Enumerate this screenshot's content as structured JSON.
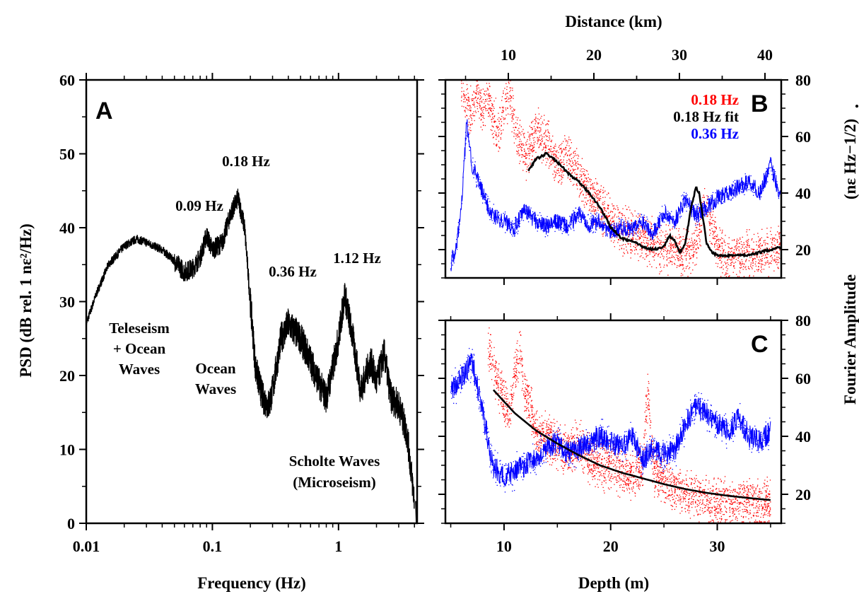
{
  "chart_data": [
    {
      "panel": "A",
      "type": "line",
      "xlabel": "Frequency (Hz)",
      "ylabel": "PSD (dB rel. 1 nε²/Hz)",
      "xscale": "log",
      "xlim": [
        0.01,
        4.2
      ],
      "ylim": [
        0,
        60
      ],
      "xticks": [
        0.01,
        0.1,
        1
      ],
      "xtick_labels": [
        "0.01",
        "0.1",
        "1"
      ],
      "yticks": [
        0,
        10,
        20,
        30,
        40,
        50,
        60
      ],
      "ytick_labels": [
        "0",
        "10",
        "20",
        "30",
        "40",
        "50",
        "60"
      ],
      "x": [
        0.01,
        0.012,
        0.015,
        0.02,
        0.025,
        0.03,
        0.04,
        0.05,
        0.06,
        0.07,
        0.08,
        0.09,
        0.1,
        0.12,
        0.14,
        0.16,
        0.18,
        0.2,
        0.22,
        0.25,
        0.28,
        0.3,
        0.35,
        0.4,
        0.5,
        0.6,
        0.7,
        0.8,
        0.9,
        1.0,
        1.12,
        1.3,
        1.5,
        1.8,
        2.0,
        2.3,
        2.6,
        3.0,
        3.5,
        4.0
      ],
      "y": [
        27,
        31,
        35,
        37.5,
        38.5,
        38,
        37,
        35.5,
        34,
        34.5,
        36,
        39,
        37,
        38,
        42,
        44,
        40,
        30,
        21,
        17,
        16,
        18,
        25,
        27,
        25,
        22,
        19,
        17,
        21,
        25,
        31,
        25,
        18,
        22,
        19,
        23,
        17,
        16,
        12,
        3
      ],
      "peak_labels": [
        "0.18 Hz",
        "0.09 Hz",
        "0.36 Hz",
        "1.12 Hz"
      ],
      "annotations": [
        "Teleseism",
        "+ Ocean",
        "Waves",
        "Ocean",
        "Waves",
        "Scholte Waves",
        "(Microseism)"
      ],
      "color": "#000000",
      "panel_label": "A"
    },
    {
      "panel": "B",
      "type": "scatter",
      "xlabel_top": "Distance (km)",
      "xlim": [
        4.5,
        36
      ],
      "ylim": [
        10,
        80
      ],
      "top_xticks": [
        10,
        20,
        30,
        40
      ],
      "top_xtick_labels": [
        "10",
        "20",
        "30",
        "40"
      ],
      "yticks": [
        20,
        40,
        60,
        80
      ],
      "ytick_labels": [
        "20",
        "40",
        "60",
        "80"
      ],
      "series": [
        {
          "name": "0.18 Hz",
          "kind": "points",
          "color": "#ff0000",
          "x": [
            6,
            6.5,
            7,
            7.5,
            8,
            8.5,
            9,
            9.5,
            10,
            10.5,
            11,
            11.5,
            12,
            13,
            14,
            15,
            16,
            17,
            18,
            19,
            20,
            21,
            22,
            23,
            24,
            25,
            26,
            27,
            28,
            29,
            30,
            31,
            32,
            33,
            34,
            35,
            36
          ],
          "y": [
            78,
            72,
            68,
            75,
            70,
            74,
            66,
            62,
            70,
            76,
            64,
            58,
            52,
            62,
            58,
            50,
            54,
            46,
            40,
            36,
            30,
            27,
            26,
            24,
            22,
            20,
            20,
            19,
            22,
            38,
            20,
            17,
            18,
            18,
            18,
            20,
            22
          ]
        },
        {
          "name": "0.18 Hz fit",
          "kind": "line",
          "color": "#000000",
          "x": [
            12.3,
            13,
            14,
            15,
            16,
            17,
            18,
            19,
            20,
            21,
            22,
            23,
            24,
            25,
            25.5,
            26,
            26.5,
            27,
            27.5,
            28,
            28.3,
            28.7,
            29,
            29.5,
            30,
            31,
            32,
            33,
            34,
            35,
            36
          ],
          "y": [
            48,
            52,
            54,
            51,
            47,
            44,
            40,
            35,
            28,
            24,
            23,
            21,
            20,
            21,
            25,
            23,
            19,
            22,
            34,
            42,
            40,
            30,
            22,
            19,
            18,
            18,
            18,
            18,
            19,
            20,
            21
          ]
        },
        {
          "name": "0.36 Hz",
          "kind": "points",
          "color": "#0000ff",
          "x": [
            5,
            5.5,
            6,
            6.5,
            7,
            7.5,
            8,
            8.5,
            9,
            10,
            11,
            12,
            13,
            14,
            15,
            16,
            17,
            18,
            19,
            20,
            21,
            22,
            23,
            24,
            25,
            26,
            27,
            28,
            29,
            30,
            31,
            32,
            33,
            34,
            35,
            36
          ],
          "y": [
            15,
            20,
            35,
            65,
            50,
            45,
            40,
            35,
            32,
            30,
            28,
            34,
            30,
            28,
            30,
            28,
            33,
            29,
            30,
            26,
            28,
            27,
            30,
            26,
            33,
            30,
            38,
            32,
            35,
            38,
            40,
            42,
            44,
            40,
            50,
            38
          ]
        }
      ],
      "legend_position": "top-right",
      "panel_label": "B"
    },
    {
      "panel": "C",
      "type": "scatter",
      "xlabel": "Depth (m)",
      "xlim": [
        4.5,
        36
      ],
      "ylim": [
        10,
        80
      ],
      "xticks": [
        10,
        20,
        30
      ],
      "xtick_labels": [
        "10",
        "20",
        "30"
      ],
      "yticks": [
        20,
        40,
        60,
        80
      ],
      "ytick_labels": [
        "20",
        "40",
        "60",
        "80"
      ],
      "series": [
        {
          "name": "0.18 Hz",
          "kind": "points",
          "color": "#ff0000",
          "x": [
            8.5,
            9,
            9.5,
            10,
            10.5,
            11,
            11.5,
            12,
            12.5,
            13,
            14,
            15,
            16,
            17,
            18,
            19,
            20,
            21,
            22,
            23,
            23.5,
            24,
            25,
            26,
            27,
            28,
            29,
            30,
            31,
            32,
            33,
            34,
            35
          ],
          "y": [
            72,
            65,
            58,
            52,
            48,
            60,
            70,
            55,
            50,
            42,
            40,
            36,
            34,
            38,
            32,
            30,
            30,
            28,
            27,
            30,
            55,
            28,
            25,
            22,
            20,
            20,
            18,
            18,
            17,
            17,
            17,
            16,
            17
          ]
        },
        {
          "name": "0.18 Hz fit",
          "kind": "line",
          "color": "#000000",
          "x": [
            9,
            11,
            13,
            15,
            17,
            19,
            21,
            23,
            25,
            27,
            29,
            31,
            33,
            35
          ],
          "y": [
            56,
            48,
            42,
            37.5,
            33.5,
            30,
            27.5,
            25.5,
            23.5,
            21.8,
            20.5,
            19.5,
            18.7,
            18
          ]
        },
        {
          "name": "0.36 Hz",
          "kind": "points",
          "color": "#0000ff",
          "x": [
            5,
            6,
            7,
            8,
            9,
            10,
            11,
            12,
            13,
            14,
            15,
            16,
            17,
            18,
            19,
            20,
            21,
            22,
            23,
            24,
            25,
            26,
            27,
            28,
            29,
            30,
            31,
            32,
            33,
            34,
            35
          ],
          "y": [
            55,
            60,
            66,
            48,
            30,
            26,
            28,
            30,
            32,
            36,
            38,
            34,
            36,
            38,
            40,
            38,
            36,
            40,
            32,
            36,
            34,
            35,
            44,
            50,
            48,
            44,
            42,
            46,
            40,
            38,
            42
          ]
        }
      ],
      "panel_label": "C"
    }
  ],
  "right_axis_label_1": "Fourier Amplitude",
  "right_axis_label_2": "(nε Hz−1/2)",
  "right_axis_dot": "."
}
